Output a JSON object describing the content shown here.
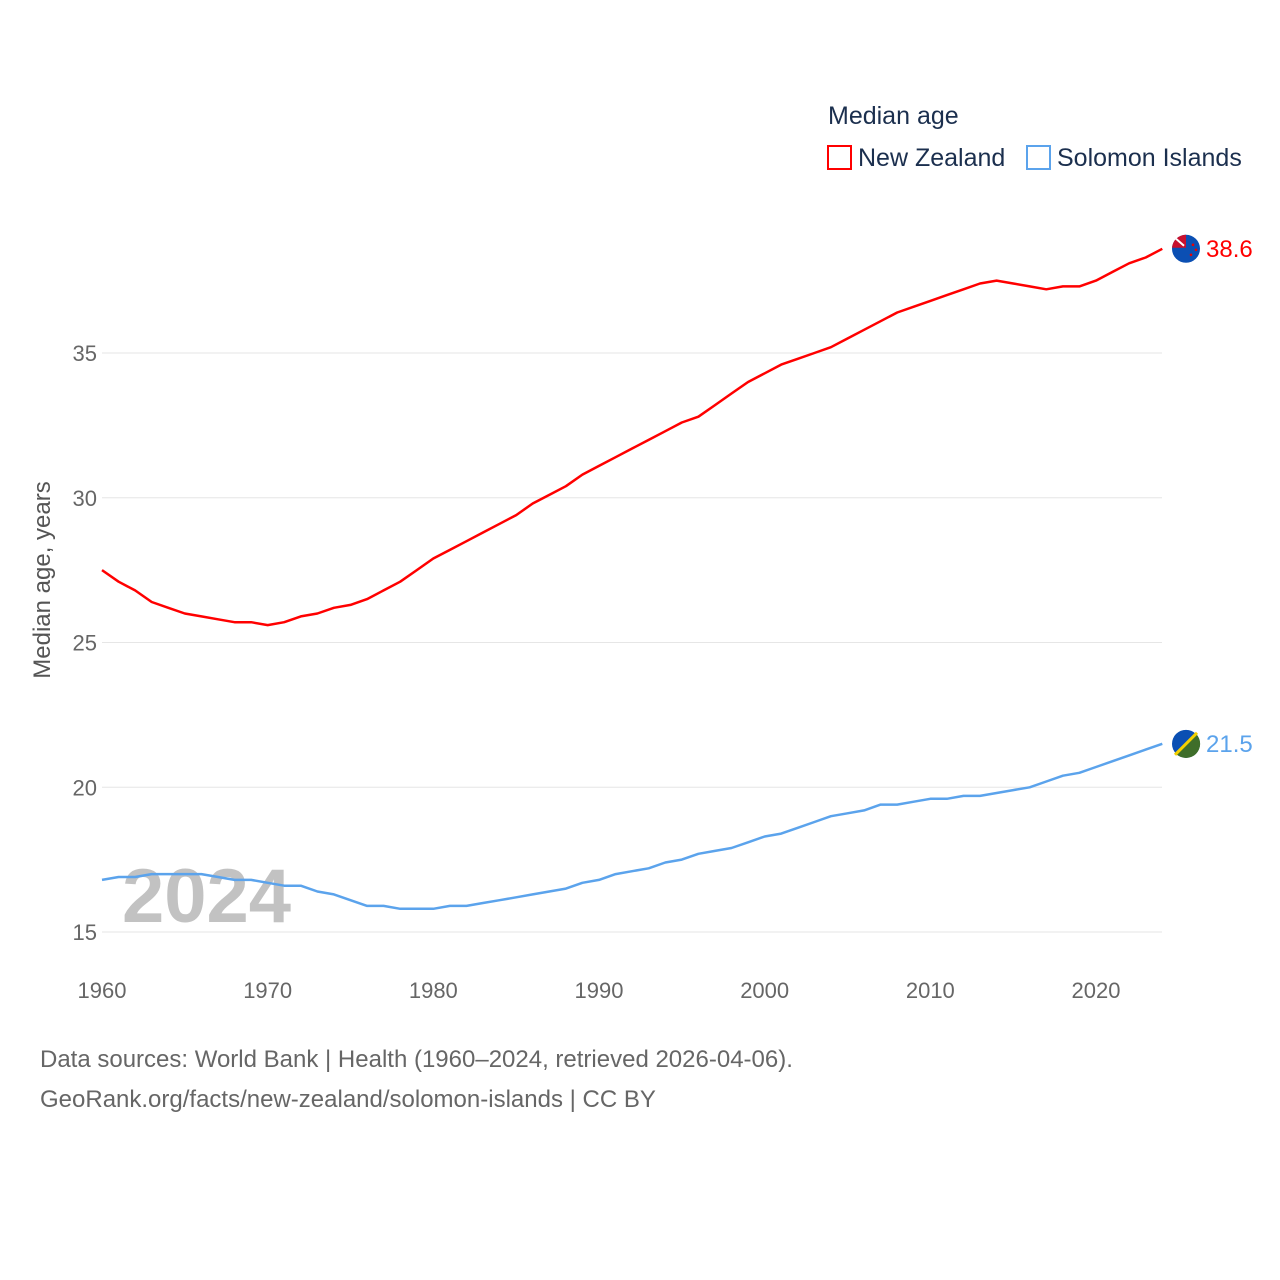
{
  "chart_data": {
    "type": "line",
    "title": "",
    "legend_title": "Median age",
    "legend_position": "top-right",
    "xlabel": "",
    "ylabel": "Median age, years",
    "xlim": [
      1960,
      2024
    ],
    "ylim": [
      14.5,
      39.5
    ],
    "x_ticks": [
      1960,
      1970,
      1980,
      1990,
      2000,
      2010,
      2020
    ],
    "y_ticks": [
      15,
      20,
      25,
      30,
      35
    ],
    "grid": true,
    "year_label": "2024",
    "x": [
      1960,
      1961,
      1962,
      1963,
      1964,
      1965,
      1966,
      1967,
      1968,
      1969,
      1970,
      1971,
      1972,
      1973,
      1974,
      1975,
      1976,
      1977,
      1978,
      1979,
      1980,
      1981,
      1982,
      1983,
      1984,
      1985,
      1986,
      1987,
      1988,
      1989,
      1990,
      1991,
      1992,
      1993,
      1994,
      1995,
      1996,
      1997,
      1998,
      1999,
      2000,
      2001,
      2002,
      2003,
      2004,
      2005,
      2006,
      2007,
      2008,
      2009,
      2010,
      2011,
      2012,
      2013,
      2014,
      2015,
      2016,
      2017,
      2018,
      2019,
      2020,
      2021,
      2022,
      2023,
      2024
    ],
    "series": [
      {
        "name": "New Zealand",
        "color": "#ff0000",
        "end_label": "38.6",
        "values": [
          27.5,
          27.1,
          26.8,
          26.4,
          26.2,
          26.0,
          25.9,
          25.8,
          25.7,
          25.7,
          25.6,
          25.7,
          25.9,
          26.0,
          26.2,
          26.3,
          26.5,
          26.8,
          27.1,
          27.5,
          27.9,
          28.2,
          28.5,
          28.8,
          29.1,
          29.4,
          29.8,
          30.1,
          30.4,
          30.8,
          31.1,
          31.4,
          31.7,
          32.0,
          32.3,
          32.6,
          32.8,
          33.2,
          33.6,
          34.0,
          34.3,
          34.6,
          34.8,
          35.0,
          35.2,
          35.5,
          35.8,
          36.1,
          36.4,
          36.6,
          36.8,
          37.0,
          37.2,
          37.4,
          37.5,
          37.4,
          37.3,
          37.2,
          37.3,
          37.3,
          37.5,
          37.8,
          38.1,
          38.3,
          38.6
        ]
      },
      {
        "name": "Solomon Islands",
        "color": "#5ba3ec",
        "end_label": "21.5",
        "values": [
          16.8,
          16.9,
          16.9,
          17.0,
          17.0,
          17.0,
          17.0,
          16.9,
          16.8,
          16.8,
          16.7,
          16.6,
          16.6,
          16.4,
          16.3,
          16.1,
          15.9,
          15.9,
          15.8,
          15.8,
          15.8,
          15.9,
          15.9,
          16.0,
          16.1,
          16.2,
          16.3,
          16.4,
          16.5,
          16.7,
          16.8,
          17.0,
          17.1,
          17.2,
          17.4,
          17.5,
          17.7,
          17.8,
          17.9,
          18.1,
          18.3,
          18.4,
          18.6,
          18.8,
          19.0,
          19.1,
          19.2,
          19.4,
          19.4,
          19.5,
          19.6,
          19.6,
          19.7,
          19.7,
          19.8,
          19.9,
          20.0,
          20.2,
          20.4,
          20.5,
          20.7,
          20.9,
          21.1,
          21.3,
          21.5
        ]
      }
    ]
  },
  "footer": {
    "line1": "Data sources: World Bank | Health (1960–2024, retrieved 2026-04-06).",
    "line2": "GeoRank.org/facts/new-zealand/solomon-islands | CC BY"
  }
}
